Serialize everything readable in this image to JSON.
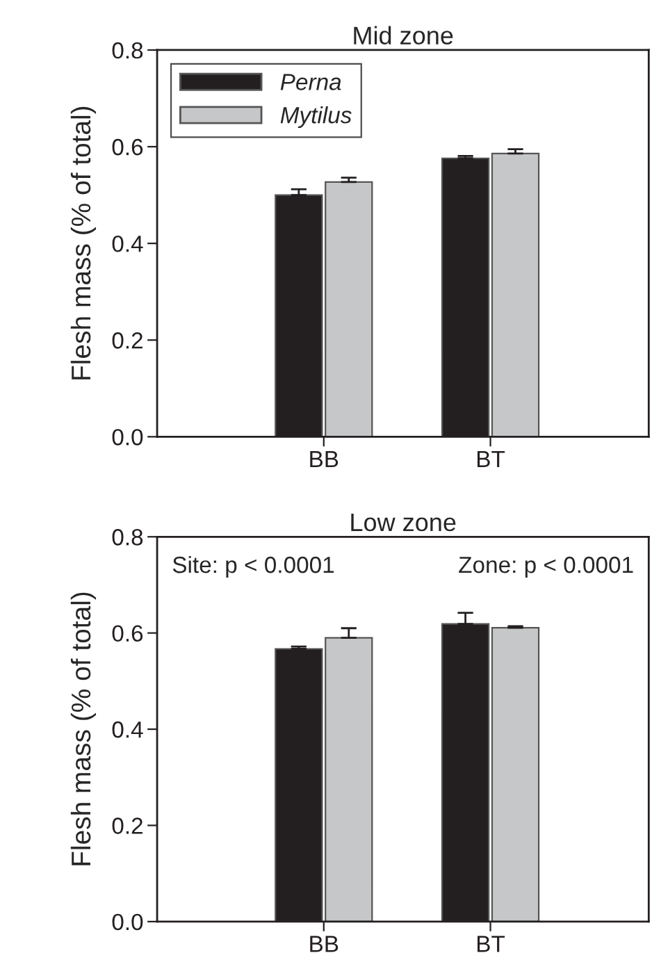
{
  "chart_data": [
    {
      "type": "bar",
      "title": "Mid zone",
      "ylabel": "Flesh mass (% of total)",
      "categories": [
        "BB",
        "BT"
      ],
      "legend": "top left",
      "ylim": [
        0,
        0.8
      ],
      "yticks": [
        {
          "value": 0,
          "label": "0.0"
        },
        {
          "value": 0.2,
          "label": "0.2"
        },
        {
          "value": 0.4,
          "label": "0.4"
        },
        {
          "value": 0.6,
          "label": "0.6"
        },
        {
          "value": 0.8,
          "label": "0.8"
        }
      ],
      "series": [
        {
          "name": "Perna",
          "color": "#231f20",
          "values": [
            0.5,
            0.576
          ],
          "errors": [
            [
              0.5,
              0.512
            ],
            [
              0.576,
              0.581
            ]
          ]
        },
        {
          "name": "Mytilus",
          "color": "#c6c7c9",
          "values": [
            0.527,
            0.586
          ],
          "errors": [
            [
              0.527,
              0.536
            ],
            [
              0.586,
              0.595
            ]
          ]
        }
      ]
    },
    {
      "type": "bar",
      "title": "Low zone",
      "ylabel": "Flesh mass (% of total)",
      "categories": [
        "BB",
        "BT"
      ],
      "ylim": [
        0,
        0.8
      ],
      "yticks": [
        {
          "value": 0,
          "label": "0.0"
        },
        {
          "value": 0.2,
          "label": "0.2"
        },
        {
          "value": 0.4,
          "label": "0.4"
        },
        {
          "value": 0.6,
          "label": "0.6"
        },
        {
          "value": 0.8,
          "label": "0.8"
        }
      ],
      "annotations": [
        "Site: p < 0.0001",
        "Zone: p < 0.0001"
      ],
      "series": [
        {
          "color": "#231f20",
          "values": [
            0.567,
            0.619
          ],
          "errors": [
            [
              0.567,
              0.572
            ],
            [
              0.619,
              0.642
            ]
          ]
        },
        {
          "color": "#c6c7c9",
          "values": [
            0.59,
            0.611
          ],
          "errors": [
            [
              0.59,
              0.61
            ],
            [
              0.611,
              0.614
            ]
          ]
        }
      ]
    }
  ]
}
